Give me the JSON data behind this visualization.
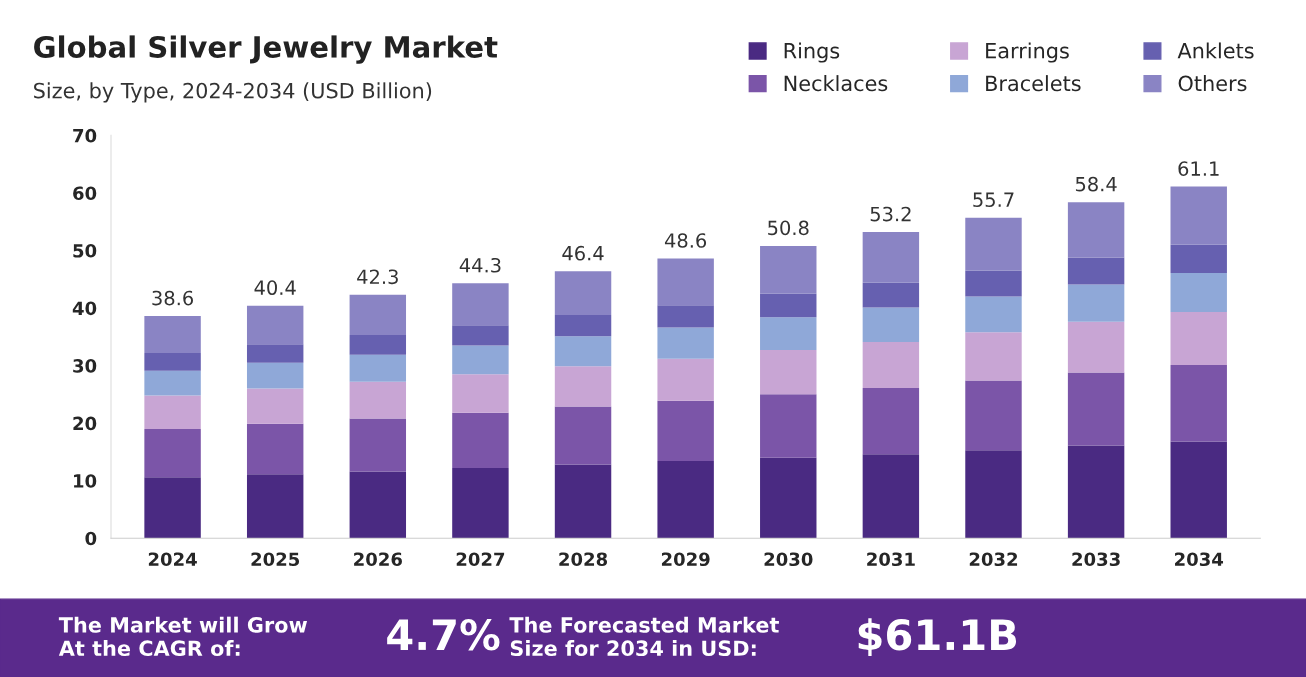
{
  "chart_data": {
    "type": "bar",
    "stacked": true,
    "title": "Global Silver Jewelry Market",
    "subtitle": "Size, by Type, 2024-2034 (USD Billion)",
    "categories": [
      "2024",
      "2025",
      "2026",
      "2027",
      "2028",
      "2029",
      "2030",
      "2031",
      "2032",
      "2033",
      "2034"
    ],
    "series": [
      {
        "name": "Rings",
        "color": "#4a2a82",
        "values": [
          10.6,
          11.1,
          11.6,
          12.2,
          12.8,
          13.4,
          14.0,
          14.6,
          15.3,
          16.1,
          16.8
        ]
      },
      {
        "name": "Necklaces",
        "color": "#7b55a8",
        "values": [
          8.4,
          8.8,
          9.2,
          9.6,
          10.1,
          10.5,
          11.0,
          11.5,
          12.1,
          12.7,
          13.3
        ]
      },
      {
        "name": "Earrings",
        "color": "#c8a5d4",
        "values": [
          5.8,
          6.1,
          6.4,
          6.7,
          7.0,
          7.3,
          7.7,
          8.0,
          8.4,
          8.8,
          9.2
        ]
      },
      {
        "name": "Bracelets",
        "color": "#8fa8d8",
        "values": [
          4.3,
          4.5,
          4.7,
          5.0,
          5.2,
          5.4,
          5.7,
          6.0,
          6.2,
          6.5,
          6.8
        ]
      },
      {
        "name": "Anklets",
        "color": "#6660b0",
        "values": [
          3.1,
          3.2,
          3.4,
          3.5,
          3.7,
          3.9,
          4.1,
          4.3,
          4.5,
          4.7,
          4.9
        ]
      },
      {
        "name": "Others",
        "color": "#8a84c4",
        "values": [
          6.4,
          6.7,
          7.0,
          7.3,
          7.6,
          8.1,
          8.3,
          8.8,
          9.2,
          9.6,
          10.1
        ]
      }
    ],
    "totals": [
      "38.6",
      "40.4",
      "42.3",
      "44.3",
      "46.4",
      "48.6",
      "50.8",
      "53.2",
      "55.7",
      "58.4",
      "61.1"
    ],
    "ylim": [
      0,
      70
    ],
    "yticks": [
      0,
      10,
      20,
      30,
      40,
      50,
      60,
      70
    ],
    "grid": false,
    "legend": "top right",
    "annotations": [
      "The Market will Grow At the CAGR of:",
      "4.7%",
      "The Forecasted Market Size for 2034 in USD:",
      "$61.1B"
    ]
  }
}
